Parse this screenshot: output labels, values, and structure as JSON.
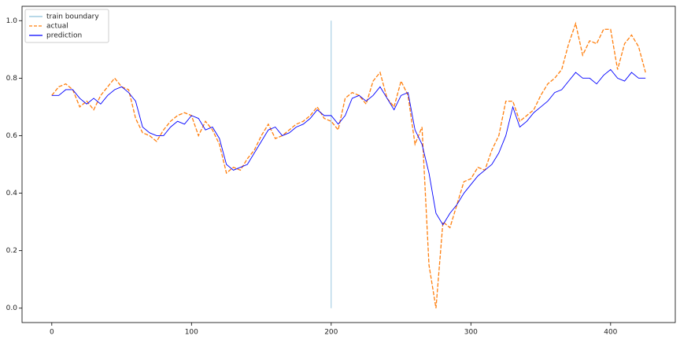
{
  "chart_data": {
    "type": "line",
    "x": [
      0,
      5,
      10,
      15,
      20,
      25,
      30,
      35,
      40,
      45,
      50,
      55,
      60,
      65,
      70,
      75,
      80,
      85,
      90,
      95,
      100,
      105,
      110,
      115,
      120,
      125,
      130,
      135,
      140,
      145,
      150,
      155,
      160,
      165,
      170,
      175,
      180,
      185,
      190,
      195,
      200,
      205,
      210,
      215,
      220,
      225,
      230,
      235,
      240,
      245,
      250,
      255,
      260,
      265,
      270,
      275,
      280,
      285,
      290,
      295,
      300,
      305,
      310,
      315,
      320,
      325,
      330,
      335,
      340,
      345,
      350,
      355,
      360,
      365,
      370,
      375,
      380,
      385,
      390,
      395,
      400,
      405,
      410,
      415,
      420,
      425
    ],
    "series": [
      {
        "name": "train boundary",
        "color": "#8ec1da",
        "x": [
          200,
          200
        ],
        "values": [
          0,
          1
        ]
      },
      {
        "name": "actual",
        "color": "#ff7f0e",
        "dash": true,
        "values": [
          0.74,
          0.77,
          0.78,
          0.76,
          0.7,
          0.72,
          0.69,
          0.74,
          0.77,
          0.8,
          0.77,
          0.76,
          0.66,
          0.61,
          0.6,
          0.58,
          0.62,
          0.65,
          0.67,
          0.68,
          0.67,
          0.6,
          0.65,
          0.62,
          0.57,
          0.47,
          0.49,
          0.48,
          0.52,
          0.55,
          0.6,
          0.64,
          0.59,
          0.6,
          0.62,
          0.64,
          0.65,
          0.67,
          0.7,
          0.66,
          0.65,
          0.62,
          0.73,
          0.75,
          0.74,
          0.71,
          0.79,
          0.82,
          0.73,
          0.7,
          0.79,
          0.74,
          0.57,
          0.63,
          0.15,
          0.0,
          0.3,
          0.28,
          0.36,
          0.44,
          0.45,
          0.49,
          0.48,
          0.55,
          0.6,
          0.72,
          0.72,
          0.65,
          0.67,
          0.69,
          0.74,
          0.78,
          0.8,
          0.83,
          0.92,
          0.99,
          0.88,
          0.93,
          0.92,
          0.97,
          0.97,
          0.83,
          0.92,
          0.95,
          0.91,
          0.82
        ]
      },
      {
        "name": "prediction",
        "color": "#0000ff",
        "values": [
          0.74,
          0.74,
          0.76,
          0.76,
          0.73,
          0.71,
          0.73,
          0.71,
          0.74,
          0.76,
          0.77,
          0.75,
          0.72,
          0.63,
          0.61,
          0.6,
          0.6,
          0.63,
          0.65,
          0.64,
          0.67,
          0.66,
          0.62,
          0.63,
          0.59,
          0.5,
          0.48,
          0.49,
          0.5,
          0.54,
          0.58,
          0.62,
          0.63,
          0.6,
          0.61,
          0.63,
          0.64,
          0.66,
          0.69,
          0.67,
          0.67,
          0.64,
          0.67,
          0.73,
          0.74,
          0.72,
          0.74,
          0.77,
          0.73,
          0.69,
          0.74,
          0.75,
          0.62,
          0.57,
          0.47,
          0.33,
          0.29,
          0.33,
          0.36,
          0.4,
          0.43,
          0.46,
          0.48,
          0.5,
          0.54,
          0.6,
          0.7,
          0.63,
          0.65,
          0.68,
          0.7,
          0.72,
          0.75,
          0.76,
          0.79,
          0.82,
          0.8,
          0.8,
          0.78,
          0.81,
          0.83,
          0.8,
          0.79,
          0.82,
          0.8,
          0.8
        ]
      }
    ],
    "xlim": [
      -21.3,
      446.3
    ],
    "xticks": [
      0,
      100,
      200,
      300,
      400
    ],
    "ylim": [
      -0.05,
      1.05
    ],
    "yticks": [
      {
        "value": 0,
        "label": "0.0"
      },
      0.2,
      0.4,
      0.6,
      0.8,
      {
        "value": 1,
        "label": "1.0"
      }
    ],
    "legend": "upper left",
    "grid": false
  }
}
